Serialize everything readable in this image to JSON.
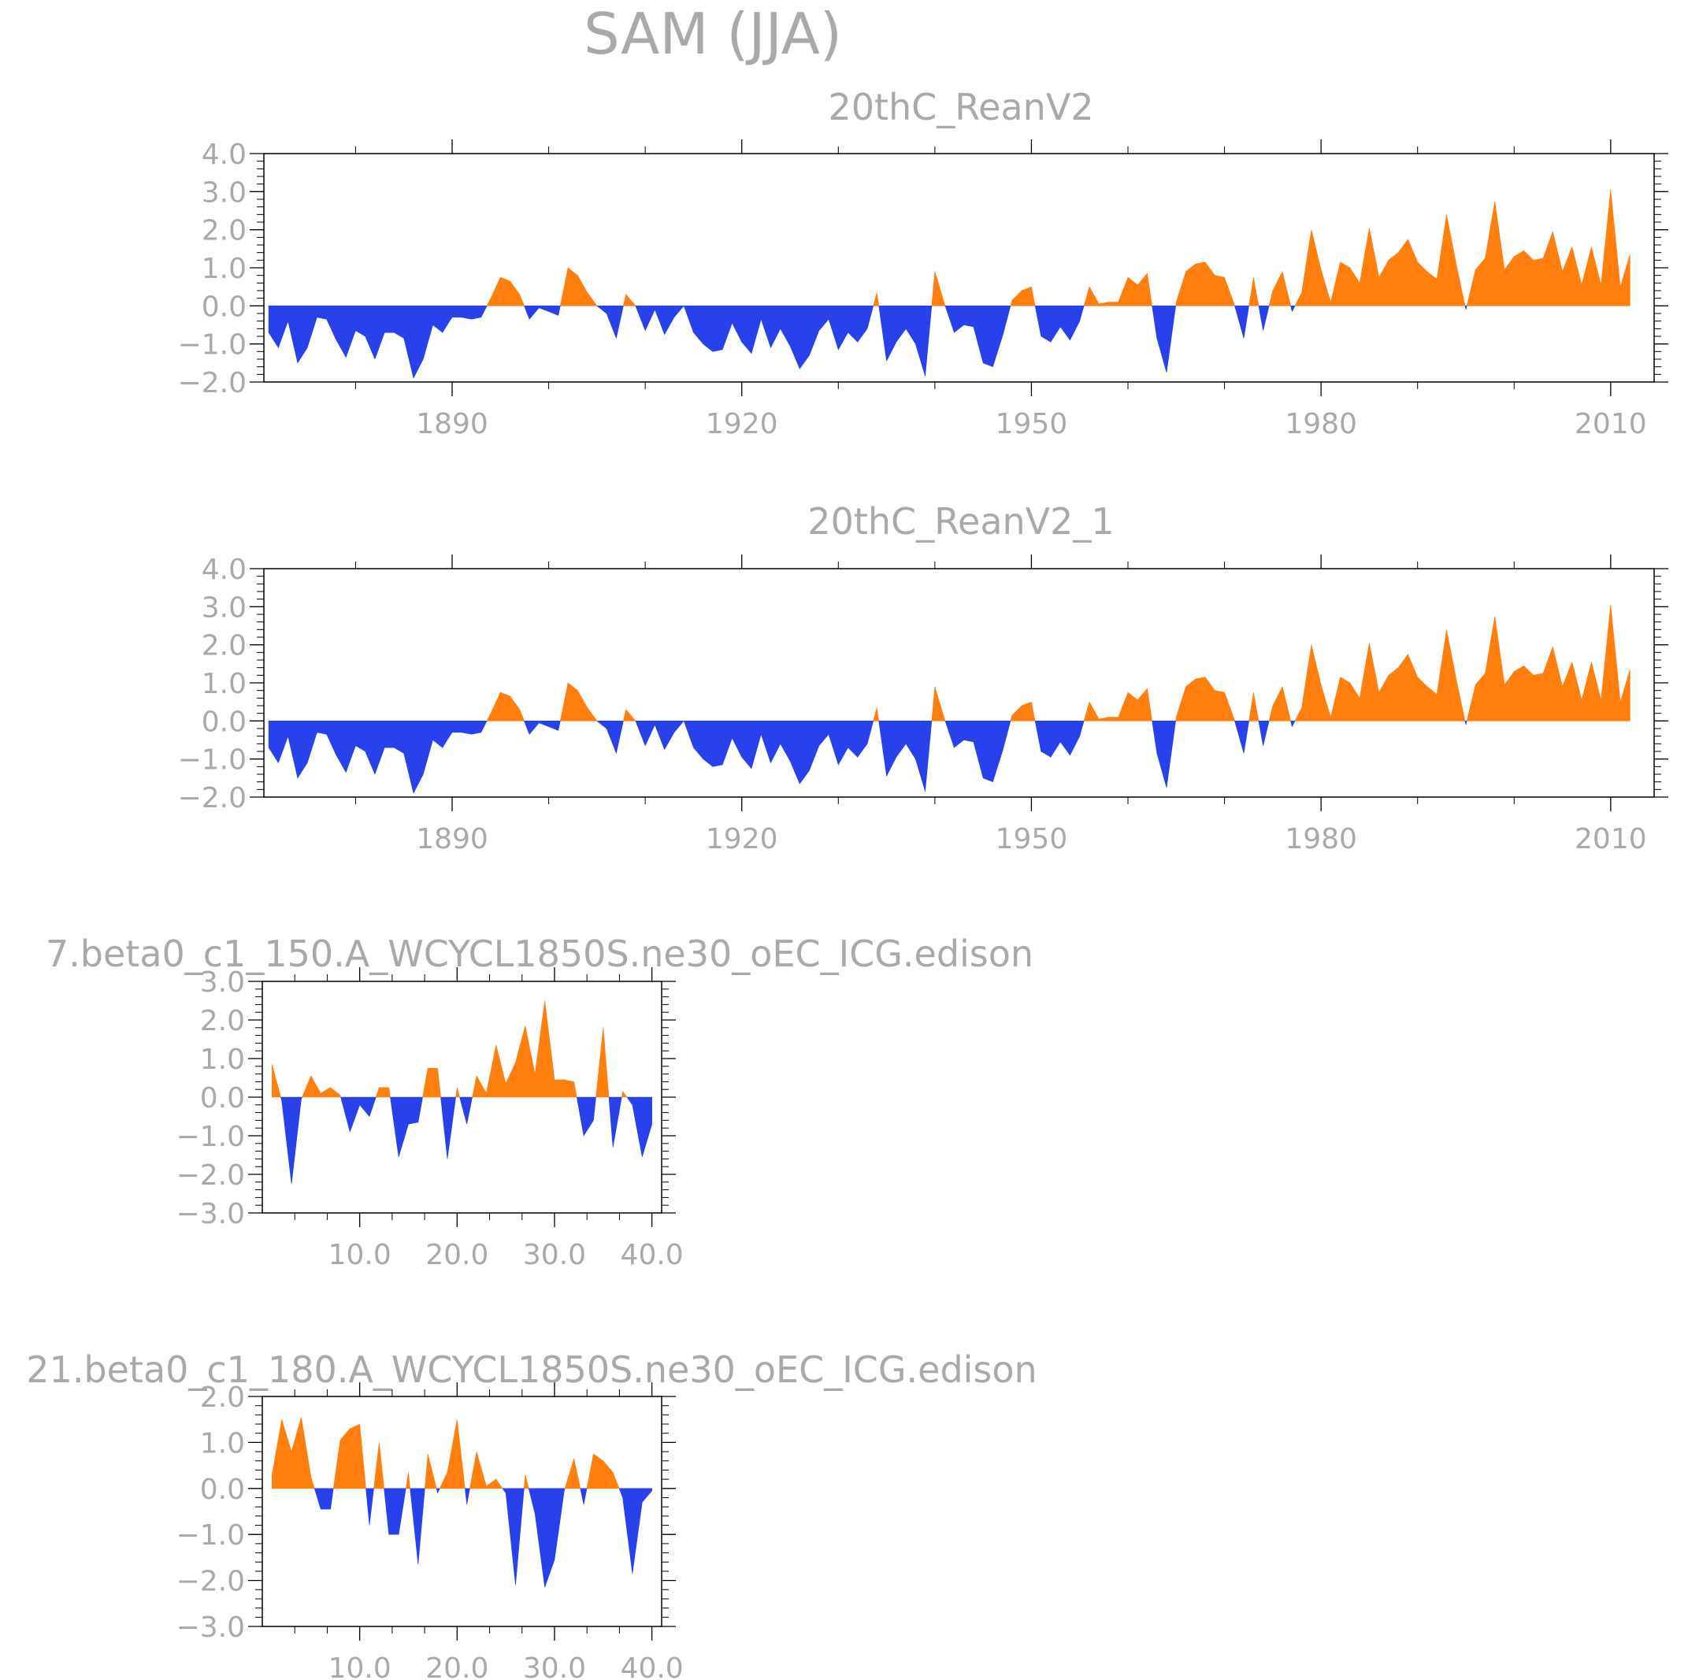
{
  "figure": {
    "title": "SAM (JJA)",
    "colors": {
      "positive": "#ff7f0e",
      "negative": "#2841ea",
      "frame": "#000000",
      "text": "#a9a9a9"
    }
  },
  "chart_data": [
    {
      "type": "area",
      "title": "20thC_ReanV2",
      "xlabel": "",
      "ylabel": "",
      "xlim": [
        1870.5,
        2014.5
      ],
      "ylim": [
        -2.0,
        4.0
      ],
      "xticks": [
        1890,
        1920,
        1950,
        1980,
        2010
      ],
      "xtick_labels": [
        "1890",
        "1920",
        "1950",
        "1980",
        "2010"
      ],
      "yticks": [
        -2.0,
        -1.0,
        0.0,
        1.0,
        2.0,
        3.0,
        4.0
      ],
      "ytick_labels": [
        "−2.0",
        "−1.0",
        "0.0",
        "1.0",
        "2.0",
        "3.0",
        "4.0"
      ],
      "grid": false,
      "x": [
        1871,
        1872,
        1873,
        1874,
        1875,
        1876,
        1877,
        1878,
        1879,
        1880,
        1881,
        1882,
        1883,
        1884,
        1885,
        1886,
        1887,
        1888,
        1889,
        1890,
        1891,
        1892,
        1893,
        1894,
        1895,
        1896,
        1897,
        1898,
        1899,
        1900,
        1901,
        1902,
        1903,
        1904,
        1905,
        1906,
        1907,
        1908,
        1909,
        1910,
        1911,
        1912,
        1913,
        1914,
        1915,
        1916,
        1917,
        1918,
        1919,
        1920,
        1921,
        1922,
        1923,
        1924,
        1925,
        1926,
        1927,
        1928,
        1929,
        1930,
        1931,
        1932,
        1933,
        1934,
        1935,
        1936,
        1937,
        1938,
        1939,
        1940,
        1941,
        1942,
        1943,
        1944,
        1945,
        1946,
        1947,
        1948,
        1949,
        1950,
        1951,
        1952,
        1953,
        1954,
        1955,
        1956,
        1957,
        1958,
        1959,
        1960,
        1961,
        1962,
        1963,
        1964,
        1965,
        1966,
        1967,
        1968,
        1969,
        1970,
        1971,
        1972,
        1973,
        1974,
        1975,
        1976,
        1977,
        1978,
        1979,
        1980,
        1981,
        1982,
        1983,
        1984,
        1985,
        1986,
        1987,
        1988,
        1989,
        1990,
        1991,
        1992,
        1993,
        1994,
        1995,
        1996,
        1997,
        1998,
        1999,
        2000,
        2001,
        2002,
        2003,
        2004,
        2005,
        2006,
        2007,
        2008,
        2009,
        2010,
        2011,
        2012
      ],
      "values": [
        -0.7,
        -1.1,
        -0.4,
        -1.5,
        -1.1,
        -0.3,
        -0.35,
        -0.9,
        -1.35,
        -0.65,
        -0.8,
        -1.4,
        -0.7,
        -0.7,
        -0.85,
        -1.9,
        -1.4,
        -0.5,
        -0.7,
        -0.3,
        -0.3,
        -0.35,
        -0.3,
        0.2,
        0.75,
        0.65,
        0.3,
        -0.35,
        -0.05,
        -0.15,
        -0.25,
        1.0,
        0.8,
        0.35,
        0.0,
        -0.2,
        -0.85,
        0.3,
        0.0,
        -0.65,
        -0.1,
        -0.75,
        -0.3,
        0.0,
        -0.7,
        -1.0,
        -1.2,
        -1.15,
        -0.45,
        -0.95,
        -1.25,
        -0.35,
        -1.1,
        -0.6,
        -1.05,
        -1.65,
        -1.3,
        -0.65,
        -0.35,
        -1.15,
        -0.7,
        -0.95,
        -0.6,
        0.35,
        -1.45,
        -0.95,
        -0.6,
        -1.0,
        -1.85,
        0.9,
        0.05,
        -0.7,
        -0.5,
        -0.55,
        -1.5,
        -1.6,
        -0.8,
        0.15,
        0.4,
        0.5,
        -0.8,
        -0.95,
        -0.55,
        -0.9,
        -0.4,
        0.5,
        0.05,
        0.1,
        0.1,
        0.75,
        0.55,
        0.85,
        -0.85,
        -1.75,
        0.1,
        0.9,
        1.1,
        1.15,
        0.8,
        0.75,
        0.05,
        -0.85,
        0.75,
        -0.65,
        0.4,
        0.9,
        -0.15,
        0.35,
        2.0,
        0.95,
        0.1,
        1.15,
        1.0,
        0.6,
        2.05,
        0.75,
        1.2,
        1.4,
        1.75,
        1.15,
        0.9,
        0.7,
        2.4,
        1.1,
        -0.1,
        0.95,
        1.25,
        2.75,
        0.95,
        1.3,
        1.45,
        1.2,
        1.25,
        1.95,
        0.9,
        1.55,
        0.55,
        1.55,
        0.55,
        3.05,
        0.5,
        1.35
      ]
    },
    {
      "type": "area",
      "title": "20thC_ReanV2_1",
      "xlabel": "",
      "ylabel": "",
      "xlim": [
        1870.5,
        2014.5
      ],
      "ylim": [
        -2.0,
        4.0
      ],
      "xticks": [
        1890,
        1920,
        1950,
        1980,
        2010
      ],
      "xtick_labels": [
        "1890",
        "1920",
        "1950",
        "1980",
        "2010"
      ],
      "yticks": [
        -2.0,
        -1.0,
        0.0,
        1.0,
        2.0,
        3.0,
        4.0
      ],
      "ytick_labels": [
        "−2.0",
        "−1.0",
        "0.0",
        "1.0",
        "2.0",
        "3.0",
        "4.0"
      ],
      "grid": false,
      "x": [
        1871,
        1872,
        1873,
        1874,
        1875,
        1876,
        1877,
        1878,
        1879,
        1880,
        1881,
        1882,
        1883,
        1884,
        1885,
        1886,
        1887,
        1888,
        1889,
        1890,
        1891,
        1892,
        1893,
        1894,
        1895,
        1896,
        1897,
        1898,
        1899,
        1900,
        1901,
        1902,
        1903,
        1904,
        1905,
        1906,
        1907,
        1908,
        1909,
        1910,
        1911,
        1912,
        1913,
        1914,
        1915,
        1916,
        1917,
        1918,
        1919,
        1920,
        1921,
        1922,
        1923,
        1924,
        1925,
        1926,
        1927,
        1928,
        1929,
        1930,
        1931,
        1932,
        1933,
        1934,
        1935,
        1936,
        1937,
        1938,
        1939,
        1940,
        1941,
        1942,
        1943,
        1944,
        1945,
        1946,
        1947,
        1948,
        1949,
        1950,
        1951,
        1952,
        1953,
        1954,
        1955,
        1956,
        1957,
        1958,
        1959,
        1960,
        1961,
        1962,
        1963,
        1964,
        1965,
        1966,
        1967,
        1968,
        1969,
        1970,
        1971,
        1972,
        1973,
        1974,
        1975,
        1976,
        1977,
        1978,
        1979,
        1980,
        1981,
        1982,
        1983,
        1984,
        1985,
        1986,
        1987,
        1988,
        1989,
        1990,
        1991,
        1992,
        1993,
        1994,
        1995,
        1996,
        1997,
        1998,
        1999,
        2000,
        2001,
        2002,
        2003,
        2004,
        2005,
        2006,
        2007,
        2008,
        2009,
        2010,
        2011,
        2012
      ],
      "values": [
        -0.7,
        -1.1,
        -0.4,
        -1.5,
        -1.1,
        -0.3,
        -0.35,
        -0.9,
        -1.35,
        -0.65,
        -0.8,
        -1.4,
        -0.7,
        -0.7,
        -0.85,
        -1.9,
        -1.4,
        -0.5,
        -0.7,
        -0.3,
        -0.3,
        -0.35,
        -0.3,
        0.2,
        0.75,
        0.65,
        0.3,
        -0.35,
        -0.05,
        -0.15,
        -0.25,
        1.0,
        0.8,
        0.35,
        0.0,
        -0.2,
        -0.85,
        0.3,
        0.0,
        -0.65,
        -0.1,
        -0.75,
        -0.3,
        0.0,
        -0.7,
        -1.0,
        -1.2,
        -1.15,
        -0.45,
        -0.95,
        -1.25,
        -0.35,
        -1.1,
        -0.6,
        -1.05,
        -1.65,
        -1.3,
        -0.65,
        -0.35,
        -1.15,
        -0.7,
        -0.95,
        -0.6,
        0.35,
        -1.45,
        -0.95,
        -0.6,
        -1.0,
        -1.85,
        0.9,
        0.05,
        -0.7,
        -0.5,
        -0.55,
        -1.5,
        -1.6,
        -0.8,
        0.15,
        0.4,
        0.5,
        -0.8,
        -0.95,
        -0.55,
        -0.9,
        -0.4,
        0.5,
        0.05,
        0.1,
        0.1,
        0.75,
        0.55,
        0.85,
        -0.85,
        -1.75,
        0.1,
        0.9,
        1.1,
        1.15,
        0.8,
        0.75,
        0.05,
        -0.85,
        0.75,
        -0.65,
        0.4,
        0.9,
        -0.15,
        0.35,
        2.0,
        0.95,
        0.1,
        1.15,
        1.0,
        0.6,
        2.05,
        0.75,
        1.2,
        1.4,
        1.75,
        1.15,
        0.9,
        0.7,
        2.4,
        1.1,
        -0.1,
        0.95,
        1.25,
        2.75,
        0.95,
        1.3,
        1.45,
        1.2,
        1.25,
        1.95,
        0.9,
        1.55,
        0.55,
        1.55,
        0.55,
        3.05,
        0.5,
        1.35
      ]
    },
    {
      "type": "area",
      "title": "7.beta0_c1_150.A_WCYCL1850S.ne30_oEC_ICG.edison",
      "xlabel": "",
      "ylabel": "",
      "xlim": [
        0,
        41
      ],
      "ylim": [
        -3.0,
        3.0
      ],
      "xticks": [
        10,
        20,
        30,
        40
      ],
      "xtick_labels": [
        "10.0",
        "20.0",
        "30.0",
        "40.0"
      ],
      "yticks": [
        -3.0,
        -2.0,
        -1.0,
        0.0,
        1.0,
        2.0,
        3.0
      ],
      "ytick_labels": [
        "−3.0",
        "−2.0",
        "−1.0",
        "0.0",
        "1.0",
        "2.0",
        "3.0"
      ],
      "grid": false,
      "x": [
        1,
        2,
        3,
        4,
        5,
        6,
        7,
        8,
        9,
        10,
        11,
        12,
        13,
        14,
        15,
        16,
        17,
        18,
        19,
        20,
        21,
        22,
        23,
        24,
        25,
        26,
        27,
        28,
        29,
        30,
        31,
        32,
        33,
        34,
        35,
        36,
        37,
        38,
        39,
        40
      ],
      "values": [
        0.85,
        -0.1,
        -2.25,
        -0.05,
        0.55,
        0.1,
        0.25,
        0.05,
        -0.9,
        -0.2,
        -0.5,
        0.25,
        0.25,
        -1.55,
        -0.7,
        -0.65,
        0.75,
        0.75,
        -1.6,
        0.25,
        -0.7,
        0.55,
        0.1,
        1.35,
        0.35,
        0.9,
        1.85,
        0.6,
        2.5,
        0.45,
        0.45,
        0.4,
        -1.0,
        -0.6,
        1.8,
        -1.3,
        0.15,
        -0.2,
        -1.55,
        -0.7
      ]
    },
    {
      "type": "area",
      "title": "21.beta0_c1_180.A_WCYCL1850S.ne30_oEC_ICG.edison",
      "xlabel": "",
      "ylabel": "",
      "xlim": [
        0,
        41
      ],
      "ylim": [
        -3.0,
        2.0
      ],
      "xticks": [
        10,
        20,
        30,
        40
      ],
      "xtick_labels": [
        "10.0",
        "20.0",
        "30.0",
        "40.0"
      ],
      "yticks": [
        -3.0,
        -2.0,
        -1.0,
        0.0,
        1.0,
        2.0
      ],
      "ytick_labels": [
        "−3.0",
        "−2.0",
        "−1.0",
        "0.0",
        "1.0",
        "2.0"
      ],
      "grid": false,
      "x": [
        1,
        2,
        3,
        4,
        5,
        6,
        7,
        8,
        9,
        10,
        11,
        12,
        13,
        14,
        15,
        16,
        17,
        18,
        19,
        20,
        21,
        22,
        23,
        24,
        25,
        26,
        27,
        28,
        29,
        30,
        31,
        32,
        33,
        34,
        35,
        36,
        37,
        38,
        39,
        40
      ],
      "values": [
        0.3,
        1.5,
        0.8,
        1.55,
        0.25,
        -0.45,
        -0.45,
        1.05,
        1.3,
        1.4,
        -0.8,
        1.0,
        -1.0,
        -1.0,
        0.35,
        -1.65,
        0.75,
        -0.1,
        0.35,
        1.5,
        -0.35,
        0.8,
        0.05,
        0.2,
        -0.1,
        -2.1,
        0.3,
        -0.55,
        -2.15,
        -1.55,
        -0.05,
        0.65,
        -0.35,
        0.75,
        0.6,
        0.35,
        -0.2,
        -1.85,
        -0.3,
        -0.05
      ]
    }
  ]
}
